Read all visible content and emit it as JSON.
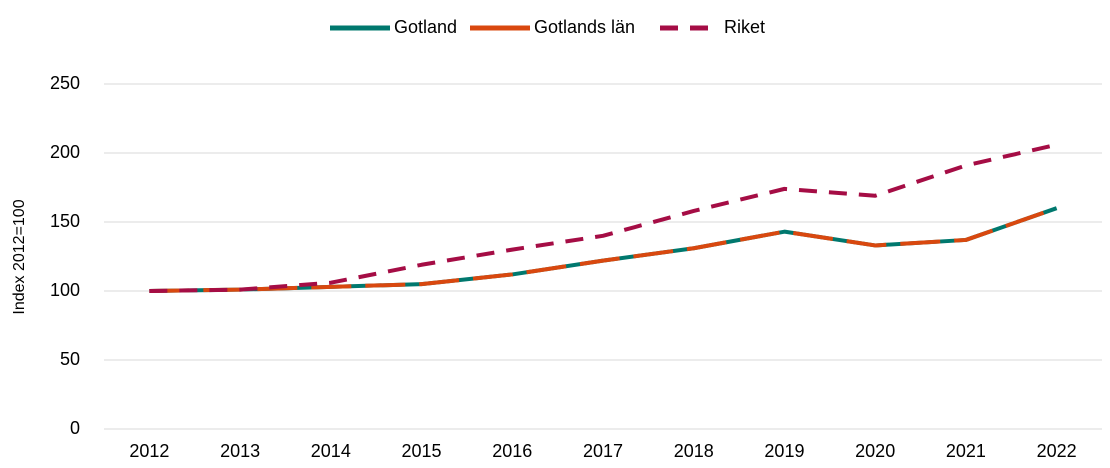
{
  "chart_data": {
    "type": "line",
    "y_label": "Index 2012=100",
    "categories": [
      "2012",
      "2013",
      "2014",
      "2015",
      "2016",
      "2017",
      "2018",
      "2019",
      "2020",
      "2021",
      "2022"
    ],
    "series": [
      {
        "name": "Gotland",
        "color": "#00786e",
        "style": "solid",
        "values": [
          100,
          101,
          103,
          105,
          112,
          122,
          131,
          143,
          133,
          137,
          160
        ]
      },
      {
        "name": "Gotlands län",
        "color": "#d9480f",
        "style": "long-dash",
        "values": [
          100,
          101,
          103,
          105,
          112,
          122,
          131,
          143,
          133,
          137,
          160
        ]
      },
      {
        "name": "Riket",
        "color": "#a50d45",
        "style": "dashed",
        "values": [
          100,
          101,
          106,
          119,
          130,
          140,
          158,
          174,
          169,
          191,
          206
        ]
      }
    ],
    "ylim": [
      0,
      250
    ],
    "yticks": [
      0,
      50,
      100,
      150,
      200,
      250
    ],
    "grid": true,
    "legend": "top"
  }
}
